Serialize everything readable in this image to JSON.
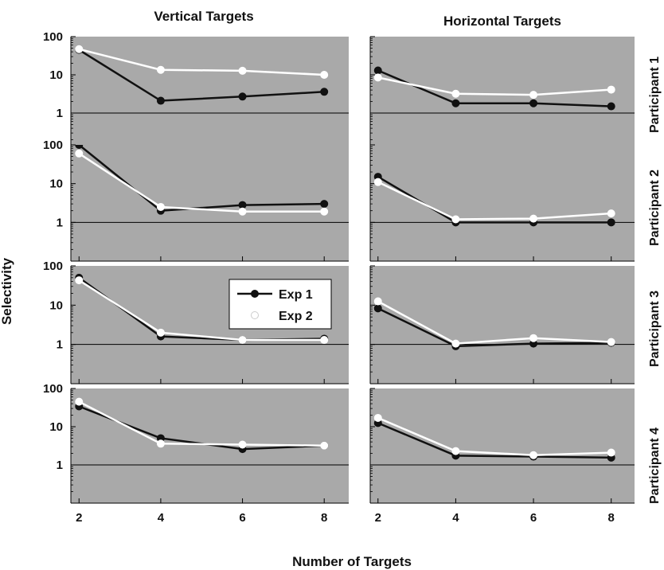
{
  "chart_data": {
    "type": "line",
    "ylabel": "Selectivity",
    "xlabel": "Number of Targets",
    "y_scale": "log",
    "ylim": [
      0.1,
      100
    ],
    "yticks": [
      1,
      10,
      100
    ],
    "ytick_labels": [
      "1",
      "10",
      "100"
    ],
    "xlim": [
      1.8,
      8.6
    ],
    "xticks": [
      2,
      4,
      6,
      8
    ],
    "xtick_labels": [
      "2",
      "4",
      "6",
      "8"
    ],
    "reference_line_y": 1,
    "grid": false,
    "background_color": "#a9a9a9",
    "legend": {
      "placement": "panel row 3, vertical targets, top-right",
      "entries": [
        "Exp 1",
        "Exp 2"
      ]
    },
    "columns": [
      "Vertical Targets",
      "Horizontal Targets"
    ],
    "rows": [
      "Participant 1",
      "Participant 2",
      "Participant 3",
      "Participant 4"
    ],
    "series_styles": [
      {
        "name": "Exp 1",
        "line_color": "#111111",
        "marker_fill": "#111111"
      },
      {
        "name": "Exp 2",
        "line_color": "#ffffff",
        "marker_fill": "#ffffff"
      }
    ],
    "panels": [
      {
        "row": "Participant 1",
        "column": "Vertical Targets",
        "x": [
          2,
          4,
          6,
          8
        ],
        "series": [
          {
            "name": "Exp 1",
            "values": [
              45,
              2.1,
              2.7,
              3.6
            ]
          },
          {
            "name": "Exp 2",
            "values": [
              47,
              13.5,
              12.8,
              10
            ]
          }
        ]
      },
      {
        "row": "Participant 1",
        "column": "Horizontal Targets",
        "x": [
          2,
          4,
          6,
          8
        ],
        "series": [
          {
            "name": "Exp 1",
            "values": [
              13,
              1.8,
              1.8,
              1.5
            ]
          },
          {
            "name": "Exp 2",
            "values": [
              8.5,
              3.2,
              3.0,
              4.1
            ]
          }
        ]
      },
      {
        "row": "Participant 2",
        "column": "Vertical Targets",
        "x": [
          2,
          4,
          6,
          8
        ],
        "series": [
          {
            "name": "Exp 1",
            "values": [
              100,
              2.0,
              2.8,
              3.0
            ]
          },
          {
            "name": "Exp 2",
            "values": [
              60,
              2.5,
              1.9,
              1.9
            ]
          }
        ]
      },
      {
        "row": "Participant 2",
        "column": "Horizontal Targets",
        "x": [
          2,
          4,
          6,
          8
        ],
        "series": [
          {
            "name": "Exp 1",
            "values": [
              15,
              1.0,
              1.0,
              1.0
            ]
          },
          {
            "name": "Exp 2",
            "values": [
              11,
              1.2,
              1.25,
              1.7
            ]
          }
        ]
      },
      {
        "row": "Participant 3",
        "column": "Vertical Targets",
        "x": [
          2,
          4,
          6,
          8
        ],
        "series": [
          {
            "name": "Exp 1",
            "values": [
              50,
              1.6,
              1.3,
              1.4
            ]
          },
          {
            "name": "Exp 2",
            "values": [
              43,
              2.0,
              1.3,
              1.3
            ]
          }
        ]
      },
      {
        "row": "Participant 3",
        "column": "Horizontal Targets",
        "x": [
          2,
          4,
          6,
          8
        ],
        "series": [
          {
            "name": "Exp 1",
            "values": [
              8.3,
              0.9,
              1.05,
              1.1
            ]
          },
          {
            "name": "Exp 2",
            "values": [
              12.5,
              1.05,
              1.45,
              1.15
            ]
          }
        ]
      },
      {
        "row": "Participant 4",
        "column": "Vertical Targets",
        "x": [
          2,
          4,
          6,
          8
        ],
        "series": [
          {
            "name": "Exp 1",
            "values": [
              34,
              5.0,
              2.6,
              3.2
            ]
          },
          {
            "name": "Exp 2",
            "values": [
              45,
              3.6,
              3.4,
              3.2
            ]
          }
        ]
      },
      {
        "row": "Participant 4",
        "column": "Horizontal Targets",
        "x": [
          2,
          4,
          6,
          8
        ],
        "series": [
          {
            "name": "Exp 1",
            "values": [
              12.5,
              1.75,
              1.65,
              1.55
            ]
          },
          {
            "name": "Exp 2",
            "values": [
              17,
              2.3,
              1.8,
              2.1
            ]
          }
        ]
      }
    ]
  }
}
